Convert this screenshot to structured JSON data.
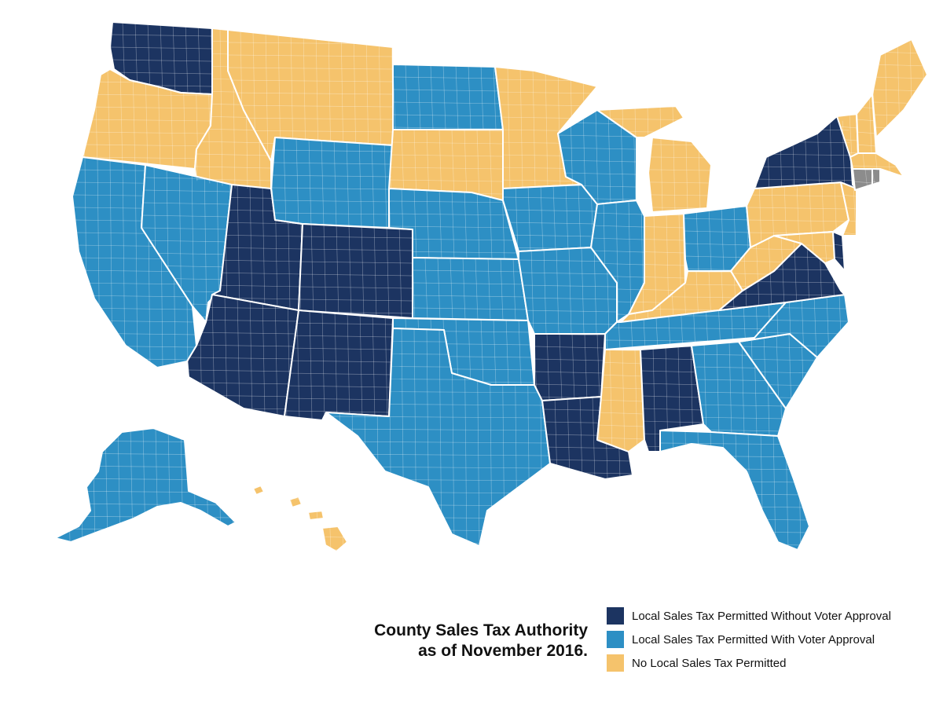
{
  "title": {
    "line1": "County Sales Tax Authority",
    "line2": "as of November 2016."
  },
  "colors": {
    "without_voter_approval": "#1c3461",
    "with_voter_approval": "#2d8fc4",
    "no_local_tax": "#f5c36c",
    "no_county_government": "#8c8c8c"
  },
  "legend": [
    {
      "label": "Local Sales Tax Permitted Without Voter Approval",
      "category": "without_voter_approval"
    },
    {
      "label": "Local Sales Tax Permitted With Voter Approval",
      "category": "with_voter_approval"
    },
    {
      "label": "No Local Sales Tax Permitted",
      "category": "no_local_tax"
    }
  ],
  "states": [
    {
      "id": "WA",
      "category": "without_voter_approval"
    },
    {
      "id": "OR",
      "category": "no_local_tax"
    },
    {
      "id": "ID",
      "category": "no_local_tax"
    },
    {
      "id": "MT",
      "category": "no_local_tax"
    },
    {
      "id": "CA",
      "category": "with_voter_approval"
    },
    {
      "id": "NV",
      "category": "with_voter_approval"
    },
    {
      "id": "UT",
      "category": "without_voter_approval"
    },
    {
      "id": "AZ",
      "category": "without_voter_approval"
    },
    {
      "id": "WY",
      "category": "with_voter_approval"
    },
    {
      "id": "CO",
      "category": "without_voter_approval"
    },
    {
      "id": "NM",
      "category": "without_voter_approval"
    },
    {
      "id": "ND",
      "category": "with_voter_approval"
    },
    {
      "id": "SD",
      "category": "no_local_tax"
    },
    {
      "id": "NE",
      "category": "with_voter_approval"
    },
    {
      "id": "KS",
      "category": "with_voter_approval"
    },
    {
      "id": "OK",
      "category": "with_voter_approval"
    },
    {
      "id": "TX",
      "category": "with_voter_approval"
    },
    {
      "id": "MN",
      "category": "no_local_tax"
    },
    {
      "id": "IA",
      "category": "with_voter_approval"
    },
    {
      "id": "MO",
      "category": "with_voter_approval"
    },
    {
      "id": "AR",
      "category": "without_voter_approval"
    },
    {
      "id": "LA",
      "category": "without_voter_approval"
    },
    {
      "id": "WI",
      "category": "with_voter_approval"
    },
    {
      "id": "IL",
      "category": "with_voter_approval"
    },
    {
      "id": "MI",
      "category": "no_local_tax"
    },
    {
      "id": "IN",
      "category": "no_local_tax"
    },
    {
      "id": "OH",
      "category": "with_voter_approval"
    },
    {
      "id": "KY",
      "category": "no_local_tax"
    },
    {
      "id": "TN",
      "category": "with_voter_approval"
    },
    {
      "id": "MS",
      "category": "no_local_tax"
    },
    {
      "id": "AL",
      "category": "without_voter_approval"
    },
    {
      "id": "GA",
      "category": "with_voter_approval"
    },
    {
      "id": "FL",
      "category": "with_voter_approval"
    },
    {
      "id": "SC",
      "category": "with_voter_approval"
    },
    {
      "id": "NC",
      "category": "with_voter_approval"
    },
    {
      "id": "VA",
      "category": "without_voter_approval"
    },
    {
      "id": "WV",
      "category": "no_local_tax"
    },
    {
      "id": "PA",
      "category": "no_local_tax"
    },
    {
      "id": "NY",
      "category": "without_voter_approval"
    },
    {
      "id": "NJ",
      "category": "no_local_tax"
    },
    {
      "id": "MD",
      "category": "no_local_tax"
    },
    {
      "id": "DE",
      "category": "without_voter_approval"
    },
    {
      "id": "VT",
      "category": "no_local_tax"
    },
    {
      "id": "NH",
      "category": "no_local_tax"
    },
    {
      "id": "ME",
      "category": "no_local_tax"
    },
    {
      "id": "MA",
      "category": "no_local_tax"
    },
    {
      "id": "CT",
      "category": "no_county_government"
    },
    {
      "id": "RI",
      "category": "no_county_government"
    },
    {
      "id": "AK",
      "category": "with_voter_approval"
    },
    {
      "id": "HI",
      "category": "no_local_tax"
    }
  ]
}
